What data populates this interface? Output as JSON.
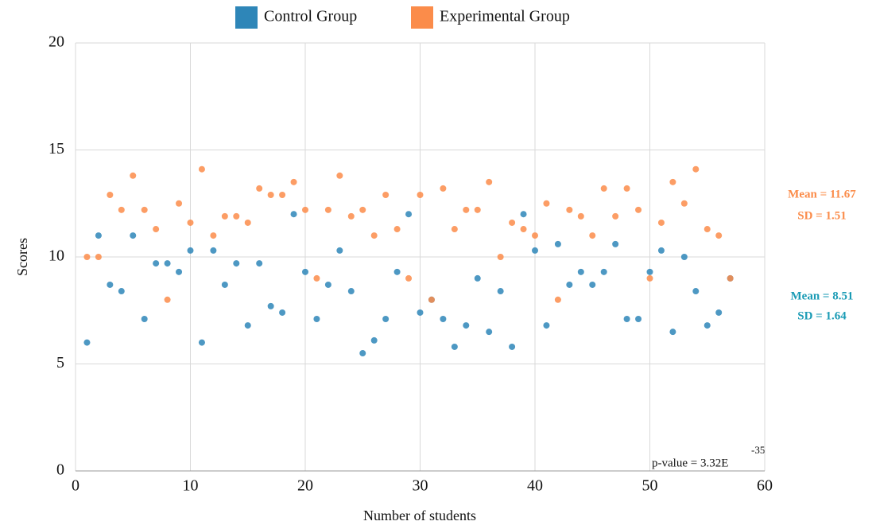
{
  "chart_data": {
    "type": "scatter",
    "x_label": "Number of students",
    "y_label": "Scores",
    "xlim": [
      0,
      60
    ],
    "xticks": [
      0,
      10,
      20,
      30,
      40,
      50,
      60
    ],
    "ylim": [
      0,
      20
    ],
    "yticks": [
      0,
      5,
      10,
      15,
      20
    ],
    "grid": true,
    "legend": "top",
    "x": [
      1,
      2,
      3,
      4,
      5,
      6,
      7,
      8,
      9,
      10,
      11,
      12,
      13,
      14,
      15,
      16,
      17,
      18,
      19,
      20,
      21,
      22,
      23,
      24,
      25,
      26,
      27,
      28,
      29,
      30,
      31,
      32,
      33,
      34,
      35,
      36,
      37,
      38,
      39,
      40,
      41,
      42,
      43,
      44,
      45,
      46,
      47,
      48,
      49,
      50,
      51,
      52,
      53,
      54,
      55,
      56,
      57
    ],
    "series": [
      {
        "name": "Control Group",
        "color": "#2e86b8",
        "values": [
          6.0,
          11.0,
          8.7,
          8.4,
          11.0,
          7.1,
          9.7,
          9.7,
          9.3,
          10.3,
          6.0,
          10.3,
          8.7,
          9.7,
          6.8,
          9.7,
          7.7,
          7.4,
          12.0,
          9.3,
          7.1,
          8.7,
          10.3,
          8.4,
          5.5,
          6.1,
          7.1,
          9.3,
          12.0,
          7.4,
          8.0,
          7.1,
          5.8,
          6.8,
          9.0,
          6.5,
          8.4,
          5.8,
          12.0,
          10.3,
          6.8,
          10.6,
          8.7,
          9.3,
          8.7,
          9.3,
          10.6,
          7.1,
          7.1,
          9.3,
          10.3,
          6.5,
          10.0,
          8.4,
          6.8,
          7.4,
          9.0
        ]
      },
      {
        "name": "Experimental Group",
        "color": "#fb8c4a",
        "values": [
          10.0,
          10.0,
          12.9,
          12.2,
          13.8,
          12.2,
          11.3,
          8.0,
          12.5,
          11.6,
          14.1,
          11.0,
          11.9,
          11.9,
          11.6,
          13.2,
          12.9,
          12.9,
          13.5,
          12.2,
          9.0,
          12.2,
          13.8,
          11.9,
          12.2,
          11.0,
          12.9,
          11.3,
          9.0,
          12.9,
          8.0,
          13.2,
          11.3,
          12.2,
          12.2,
          13.5,
          10.0,
          11.6,
          11.3,
          11.0,
          12.5,
          8.0,
          12.2,
          11.9,
          11.0,
          13.2,
          11.9,
          13.2,
          12.2,
          9.0,
          11.6,
          13.5,
          12.5,
          14.1,
          11.3,
          11.0,
          9.0
        ]
      }
    ],
    "annotations": {
      "experimental_mean": "Mean = 11.67",
      "experimental_sd": "SD = 1.51",
      "control_mean": "Mean = 8.51",
      "control_sd": "SD = 1.64",
      "p_value": "p-value = 3.32E",
      "p_value_exponent": "-35"
    }
  }
}
